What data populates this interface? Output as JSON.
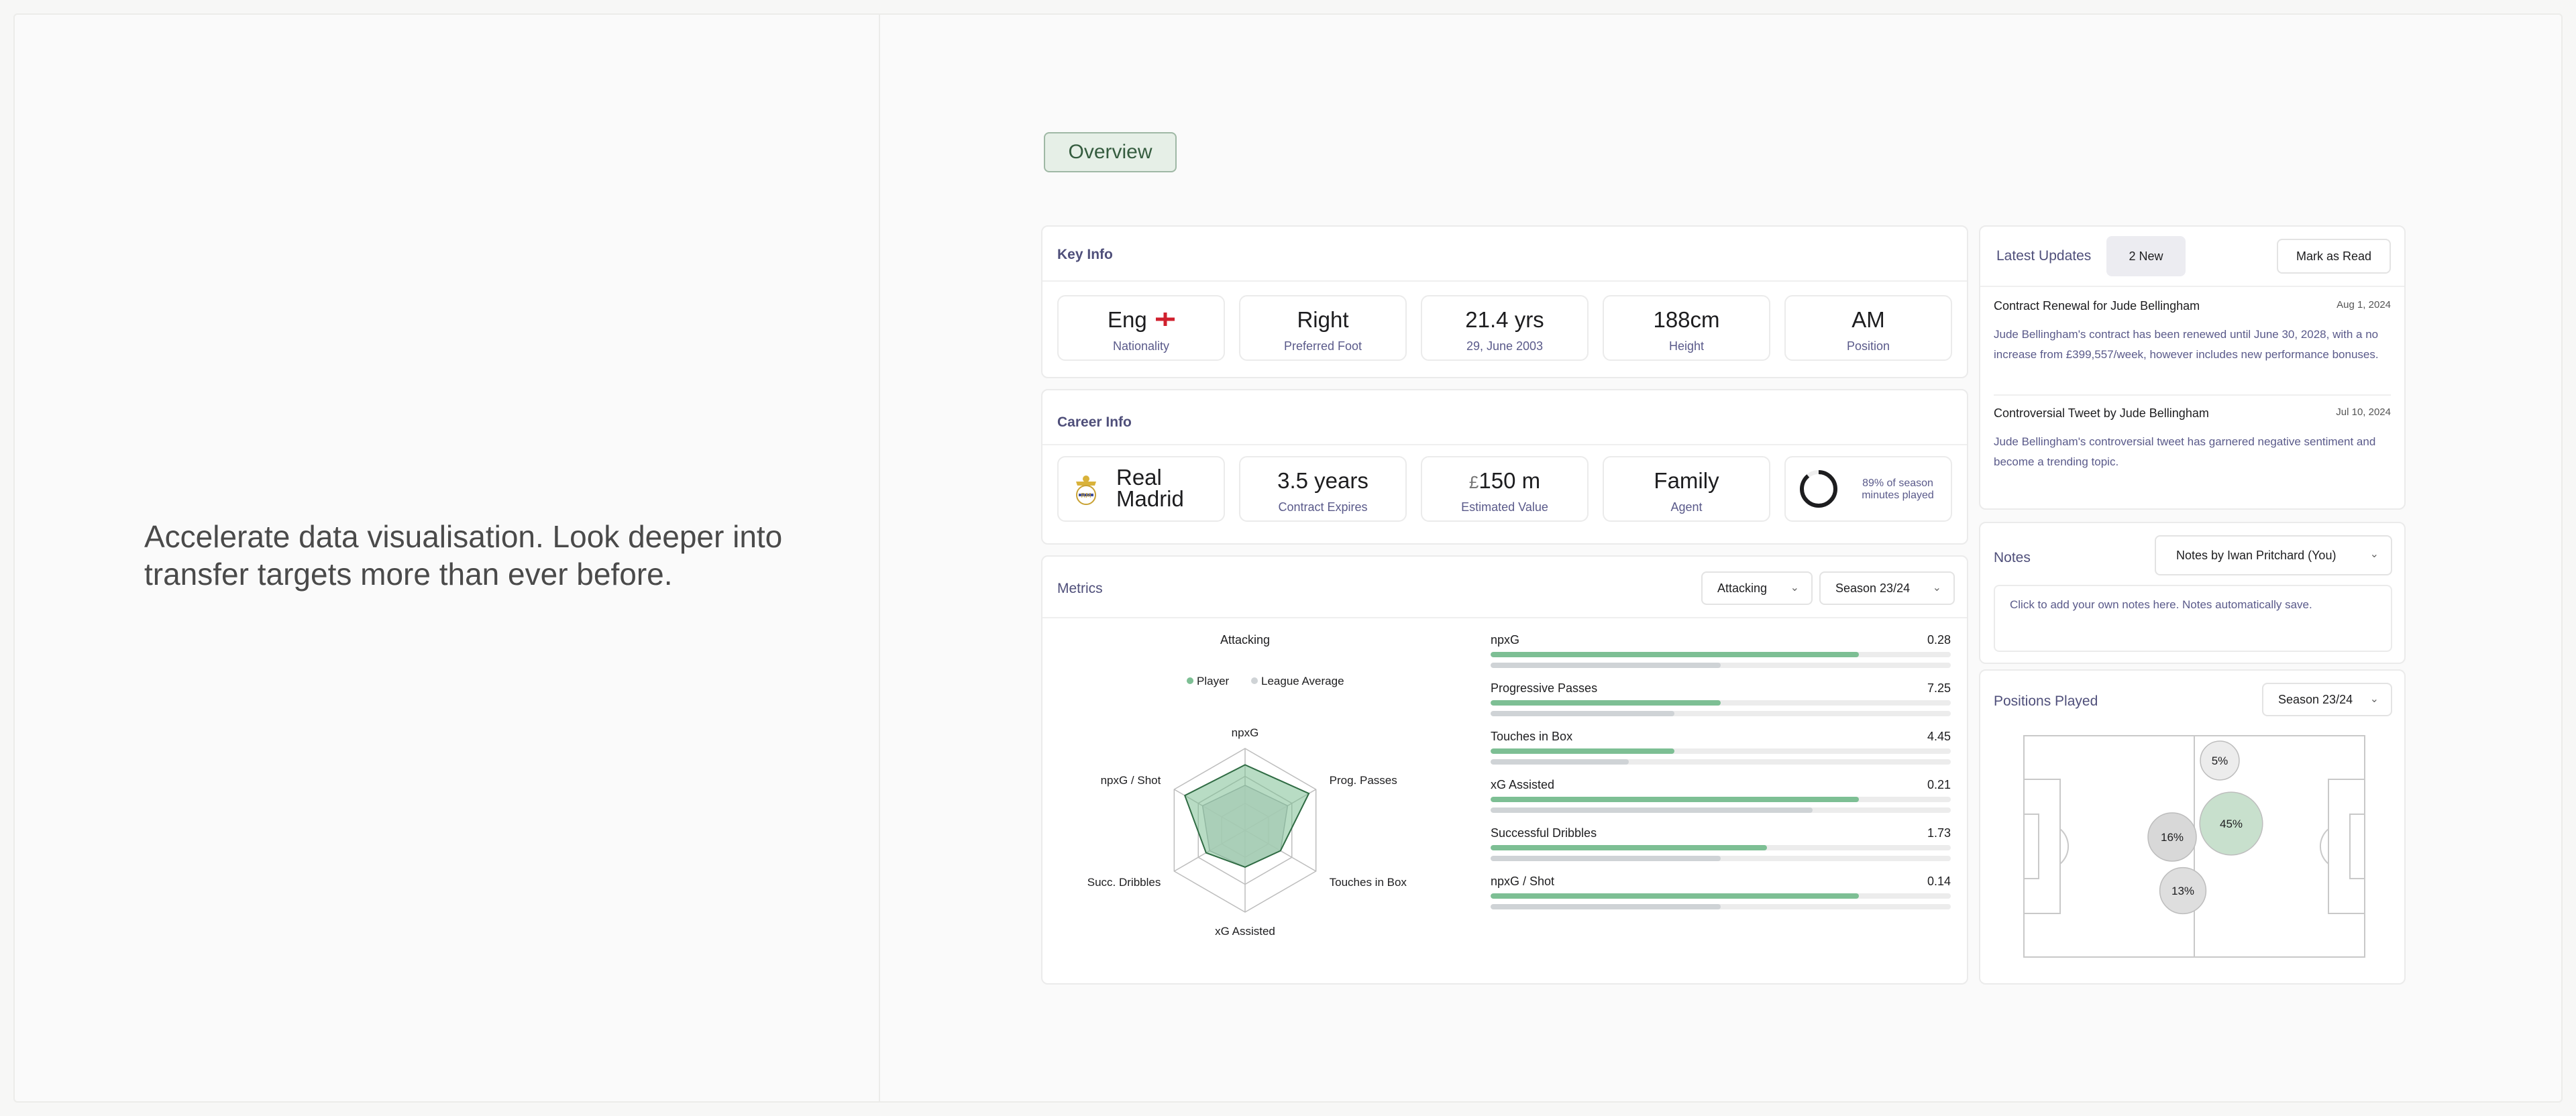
{
  "tagline": "Accelerate data visualisation. Look deeper into transfer targets more than ever before.",
  "overview_tab": "Overview",
  "key_info": {
    "title": "Key Info",
    "items": [
      {
        "value": "Eng",
        "label": "Nationality",
        "flag": "england-flag"
      },
      {
        "value": "Right",
        "label": "Preferred Foot"
      },
      {
        "value": "21.4 yrs",
        "label": "29, June 2003"
      },
      {
        "value": "188cm",
        "label": "Height"
      },
      {
        "value": "AM",
        "label": "Position"
      }
    ]
  },
  "career_info": {
    "title": "Career Info",
    "club": "Real Madrid",
    "club_line1": "Real",
    "club_line2": "Madrid",
    "contract": {
      "value": "3.5 years",
      "label": "Contract Expires"
    },
    "estimated_value": {
      "currency": "£",
      "value": "150 m",
      "label": "Estimated Value"
    },
    "agent": {
      "value": "Family",
      "label": "Agent"
    },
    "minutes": {
      "text": "89% of season minutes played",
      "line1": "89% of season",
      "line2": "minutes played",
      "percent": 89
    }
  },
  "metrics": {
    "title": "Metrics",
    "category_select": "Attacking",
    "season_select": "Season 23/24",
    "radar": {
      "title": "Attacking",
      "legend": [
        "Player",
        "League Average"
      ],
      "axes": [
        "npxG",
        "Prog. Passes",
        "Touches in Box",
        "xG Assisted",
        "Succ. Dribbles",
        "npxG / Shot"
      ]
    },
    "rows": [
      {
        "name": "npxG",
        "value": "0.28",
        "player": 0.8,
        "average": 0.5
      },
      {
        "name": "Progressive Passes",
        "value": "7.25",
        "player": 0.5,
        "average": 0.4
      },
      {
        "name": "Touches in Box",
        "value": "4.45",
        "player": 0.4,
        "average": 0.3
      },
      {
        "name": "xG Assisted",
        "value": "0.21",
        "player": 0.8,
        "average": 0.7
      },
      {
        "name": "Successful Dribbles",
        "value": "1.73",
        "player": 0.6,
        "average": 0.5
      },
      {
        "name": "npxG / Shot",
        "value": "0.14",
        "player": 0.8,
        "average": 0.5
      }
    ]
  },
  "latest_updates": {
    "title": "Latest Updates",
    "new_badge": "2 New",
    "mark_read": "Mark as Read",
    "items": [
      {
        "title": "Contract Renewal for Jude Bellingham",
        "date": "Aug 1, 2024",
        "body": "Jude Bellingham's contract has been renewed until June 30, 2028, with a no increase from £399,557/week, however includes new performance bonuses."
      },
      {
        "title": "Controversial Tweet by Jude Bellingham",
        "date": "Jul 10, 2024",
        "body": "Jude Bellingham's controversial tweet has garnered negative sentiment and become a trending topic."
      }
    ]
  },
  "notes": {
    "title": "Notes",
    "select": "Notes by Iwan Pritchard (You)",
    "placeholder": "Click to add your own notes here. Notes automatically save."
  },
  "positions": {
    "title": "Positions Played",
    "season_select": "Season 23/24",
    "zones": [
      {
        "label": "5%",
        "percent": 5
      },
      {
        "label": "45%",
        "percent": 45
      },
      {
        "label": "16%",
        "percent": 16
      },
      {
        "label": "13%",
        "percent": 13
      }
    ]
  },
  "colors": {
    "player": "#7dbf94",
    "average": "#cfd3d6",
    "accent": "#4f4f7a"
  }
}
